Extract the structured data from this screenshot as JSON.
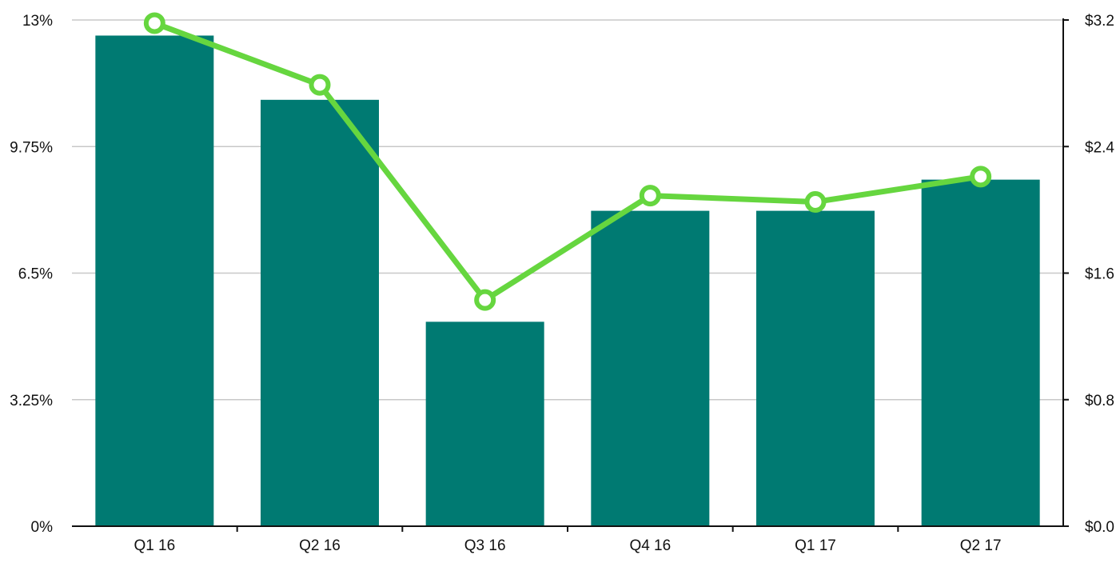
{
  "chart_data": {
    "type": "bar",
    "title": "",
    "xlabel": "",
    "ylabel": "",
    "y2label": "",
    "categories": [
      "Q1 16",
      "Q2 16",
      "Q3 16",
      "Q4 16",
      "Q1 17",
      "Q2 17"
    ],
    "ylim": [
      0,
      13
    ],
    "y2lim": [
      0,
      3.2
    ],
    "y_ticks": [
      "0%",
      "3.25%",
      "6.5%",
      "9.75%",
      "13%"
    ],
    "y_tick_values": [
      0,
      3.25,
      6.5,
      9.75,
      13
    ],
    "y2_ticks": [
      "$0.0",
      "$0.8",
      "$1.6",
      "$2.4",
      "$3.2"
    ],
    "y2_tick_values": [
      0,
      0.8,
      1.6,
      2.4,
      3.2
    ],
    "grid": true,
    "series": [
      {
        "type": "bar",
        "axis": "left",
        "color": "#007A72",
        "values": [
          12.6,
          10.95,
          5.25,
          8.1,
          8.1,
          8.9
        ]
      },
      {
        "type": "line",
        "axis": "right",
        "color": "#66D63F",
        "values": [
          3.18,
          2.79,
          1.43,
          2.09,
          2.05,
          2.21
        ]
      }
    ]
  }
}
